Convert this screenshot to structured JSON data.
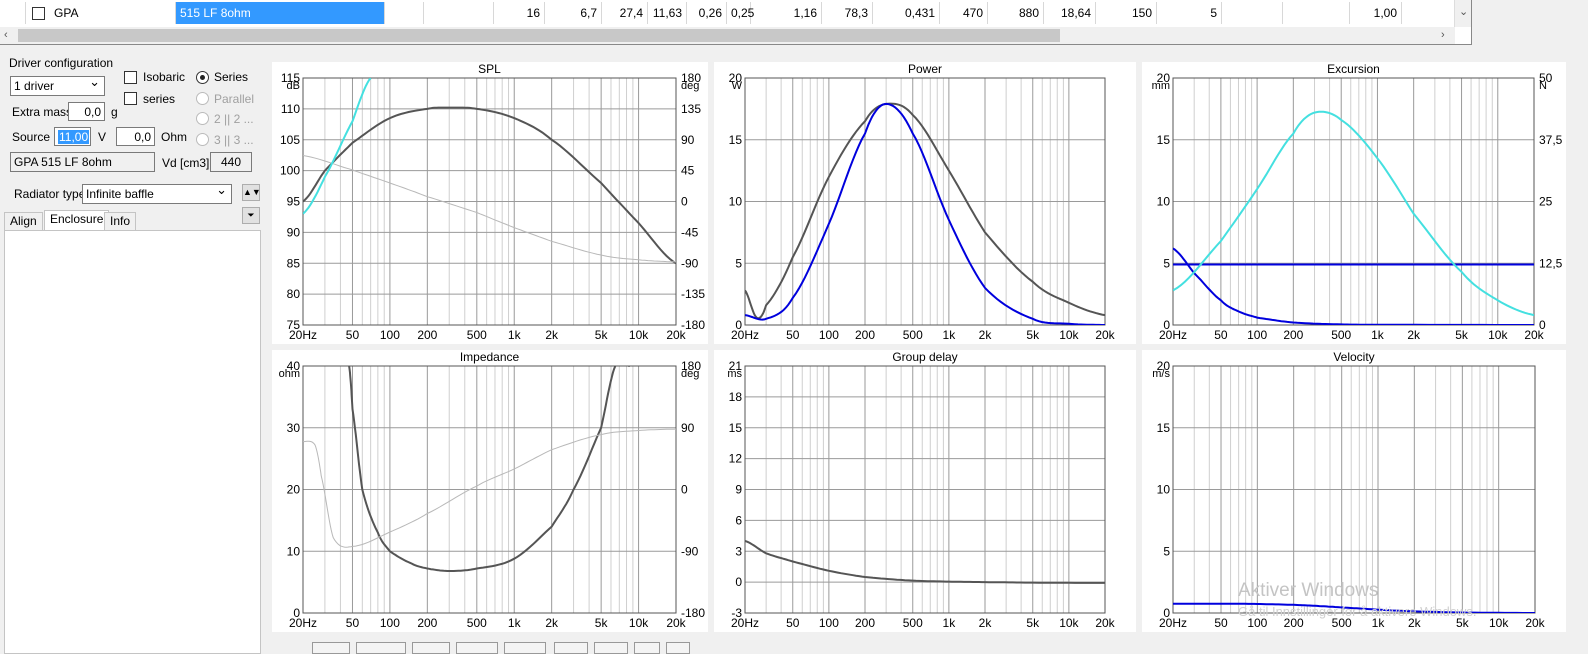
{
  "table": {
    "row": {
      "brand": "GPA",
      "model": "515 LF 8ohm",
      "values": [
        "",
        "",
        "16",
        "6,7",
        "27,4",
        "11,63",
        "0,26",
        "0,25",
        "1,16",
        "78,3",
        "0,431",
        "470",
        "880",
        "18,64",
        "150",
        "5",
        "",
        "",
        "1,00",
        ""
      ]
    }
  },
  "left_panel": {
    "driver_config_title": "Driver configuration",
    "driver_count": "1 driver",
    "isobaric_label": "Isobaric",
    "series_check_label": "series",
    "series_radio_label": "Series",
    "parallel_label": "Parallel",
    "two_label": "2 || 2 ...",
    "three_label": "3 || 3 ...",
    "extra_mass_label": "Extra mass",
    "extra_mass_value": "0,0",
    "extra_mass_unit": "g",
    "source_label": "Source",
    "source_voltage": "11,00",
    "source_voltage_unit": "V",
    "source_resistance": "0,0",
    "source_resistance_unit": "Ohm",
    "driver_name": "GPA 515 LF 8ohm",
    "vd_label": "Vd [cm3]",
    "vd_value": "440",
    "radiator_type_label": "Radiator type",
    "radiator_type_value": "Infinite baffle",
    "tabs": [
      "Align",
      "Enclosure",
      "Info"
    ],
    "active_tab": "Enclosure"
  },
  "watermark": {
    "title": "Aktiver Windows",
    "subtitle": "Gå til Innstillinger for å aktivere Windows."
  },
  "colors": {
    "grid": "#9a9a9a",
    "grid_minor": "#cfcfcf",
    "dark_curve": "#555555",
    "light_curve": "#b8b8b8",
    "blue_curve": "#0000dd",
    "cyan_curve": "#44e0e0"
  },
  "chart_data": [
    {
      "type": "line",
      "title": "SPL",
      "x_ticks": [
        "20Hz",
        "50",
        "100",
        "200",
        "500",
        "1k",
        "2k",
        "5k",
        "10k",
        "20k"
      ],
      "xlim": [
        20,
        20000
      ],
      "x_scale": "log",
      "ylim": [
        75,
        115
      ],
      "y_ticks": [
        "75",
        "80",
        "85",
        "90",
        "95",
        "100",
        "105",
        "110",
        "115"
      ],
      "y_unit": "dB",
      "y2lim": [
        -180,
        180
      ],
      "y2_ticks": [
        "-180",
        "-135",
        "-90",
        "-45",
        "0",
        "45",
        "90",
        "135",
        "180"
      ],
      "y2_unit": "deg",
      "series": [
        {
          "axis": "left",
          "color": "#555555",
          "x": [
            20,
            30,
            50,
            100,
            200,
            300,
            500,
            1000,
            2000,
            5000,
            10000,
            20000
          ],
          "y": [
            95.0,
            100.0,
            104.5,
            108.5,
            110.0,
            110.2,
            110.0,
            108.5,
            105.0,
            98.0,
            91.5,
            85.0
          ]
        },
        {
          "axis": "right",
          "color": "#b8b8b8",
          "x": [
            20,
            50,
            100,
            200,
            500,
            1000,
            2000,
            5000,
            10000,
            20000
          ],
          "y": [
            67,
            46,
            27,
            7,
            -16,
            -38,
            -58,
            -78,
            -85,
            -88
          ]
        },
        {
          "axis": "left",
          "color": "#44e0e0",
          "x": [
            20,
            30,
            50,
            70
          ],
          "y": [
            93,
            99,
            108,
            115
          ]
        }
      ]
    },
    {
      "type": "line",
      "title": "Power",
      "x_ticks": [
        "20Hz",
        "50",
        "100",
        "200",
        "500",
        "1k",
        "2k",
        "5k",
        "10k",
        "20k"
      ],
      "xlim": [
        20,
        20000
      ],
      "x_scale": "log",
      "ylim": [
        0,
        20
      ],
      "y_ticks": [
        "0",
        "5",
        "10",
        "15",
        "20"
      ],
      "y_unit": "W",
      "series": [
        {
          "axis": "left",
          "color": "#555555",
          "x": [
            20,
            25,
            30,
            50,
            100,
            200,
            300,
            500,
            1000,
            2000,
            5000,
            10000,
            20000
          ],
          "y": [
            2.8,
            0.6,
            1.6,
            5.5,
            12.0,
            16.5,
            17.9,
            17.0,
            12.5,
            7.5,
            3.5,
            1.8,
            0.8
          ]
        },
        {
          "axis": "left",
          "color": "#0000dd",
          "x": [
            20,
            30,
            50,
            100,
            200,
            300,
            500,
            1000,
            2000,
            5000,
            10000,
            20000
          ],
          "y": [
            0.8,
            0.5,
            2.2,
            8.2,
            15.5,
            17.9,
            15.5,
            8.5,
            3.0,
            0.5,
            0.1,
            0.0
          ]
        }
      ]
    },
    {
      "type": "line",
      "title": "Excursion",
      "x_ticks": [
        "20Hz",
        "50",
        "100",
        "200",
        "500",
        "1k",
        "2k",
        "5k",
        "10k",
        "20k"
      ],
      "xlim": [
        20,
        20000
      ],
      "x_scale": "log",
      "ylim": [
        0,
        20
      ],
      "y_ticks": [
        "0",
        "5",
        "10",
        "15",
        "20"
      ],
      "y_unit": "mm",
      "y2lim": [
        0,
        50
      ],
      "y2_ticks": [
        "0",
        "12,5",
        "25",
        "37,5",
        "50"
      ],
      "y2_unit": "N",
      "series": [
        {
          "axis": "left",
          "color": "#0000dd",
          "x": [
            20,
            30,
            50,
            70,
            100,
            200,
            500,
            1000,
            20000
          ],
          "y": [
            6.2,
            4.2,
            2.0,
            1.1,
            0.6,
            0.2,
            0.05,
            0.02,
            0.0
          ]
        },
        {
          "axis": "left",
          "color": "#0000dd",
          "x": [
            20,
            20000
          ],
          "y": [
            4.9,
            4.9
          ]
        },
        {
          "axis": "left",
          "color": "#44e0e0",
          "x": [
            20,
            50,
            100,
            200,
            300,
            500,
            1000,
            2000,
            5000,
            10000,
            20000
          ],
          "y": [
            2.8,
            6.8,
            11.0,
            15.5,
            17.2,
            16.6,
            13.5,
            9.0,
            4.3,
            2.0,
            0.8
          ]
        }
      ]
    },
    {
      "type": "line",
      "title": "Impedance",
      "x_ticks": [
        "20Hz",
        "50",
        "100",
        "200",
        "500",
        "1k",
        "2k",
        "5k",
        "10k",
        "20k"
      ],
      "xlim": [
        20,
        20000
      ],
      "x_scale": "log",
      "ylim": [
        0,
        40
      ],
      "y_ticks": [
        "0",
        "10",
        "20",
        "30",
        "40"
      ],
      "y_unit": "ohm",
      "y2lim": [
        -180,
        180
      ],
      "y2_ticks": [
        "-180",
        "-90",
        "0",
        "90",
        "180"
      ],
      "y2_unit": "deg",
      "series": [
        {
          "axis": "left",
          "color": "#555555",
          "x": [
            47,
            50,
            60,
            80,
            100,
            150,
            200,
            300,
            500,
            1000,
            2000,
            3000,
            5000,
            6500,
            8500
          ],
          "y": [
            40.0,
            33.0,
            20.0,
            13.0,
            10.0,
            8.0,
            7.2,
            6.8,
            7.2,
            8.8,
            14.0,
            20.0,
            30.0,
            40.0,
            40.0
          ]
        },
        {
          "axis": "right",
          "color": "#b8b8b8",
          "x": [
            20,
            25,
            28,
            35,
            50,
            100,
            200,
            500,
            1000,
            2000,
            5000,
            10000,
            20000
          ],
          "y": [
            70,
            65,
            20,
            -70,
            -83,
            -62,
            -35,
            5,
            30,
            58,
            80,
            86,
            88
          ]
        }
      ]
    },
    {
      "type": "line",
      "title": "Group delay",
      "x_ticks": [
        "20Hz",
        "50",
        "100",
        "200",
        "500",
        "1k",
        "2k",
        "5k",
        "10k",
        "20k"
      ],
      "xlim": [
        20,
        20000
      ],
      "x_scale": "log",
      "ylim": [
        -3,
        21
      ],
      "y_ticks": [
        "-3",
        "0",
        "3",
        "6",
        "9",
        "12",
        "15",
        "18",
        "21"
      ],
      "y_unit": "ms",
      "series": [
        {
          "axis": "left",
          "color": "#555555",
          "x": [
            20,
            30,
            50,
            100,
            200,
            500,
            1000,
            2000,
            5000,
            20000
          ],
          "y": [
            4.0,
            2.8,
            2.0,
            1.1,
            0.5,
            0.15,
            0.05,
            0.0,
            -0.05,
            -0.08
          ]
        }
      ]
    },
    {
      "type": "line",
      "title": "Velocity",
      "x_ticks": [
        "20Hz",
        "50",
        "100",
        "200",
        "500",
        "1k",
        "2k",
        "5k",
        "10k",
        "20k"
      ],
      "xlim": [
        20,
        20000
      ],
      "x_scale": "log",
      "ylim": [
        0,
        20
      ],
      "y_ticks": [
        "0",
        "5",
        "10",
        "15",
        "20"
      ],
      "y_unit": "m/s",
      "series": [
        {
          "axis": "left",
          "color": "#0000dd",
          "x": [
            20,
            50,
            100,
            200,
            300,
            500,
            1000,
            2000,
            5000,
            20000
          ],
          "y": [
            0.75,
            0.75,
            0.73,
            0.66,
            0.58,
            0.45,
            0.27,
            0.13,
            0.04,
            0.0
          ]
        }
      ]
    }
  ]
}
